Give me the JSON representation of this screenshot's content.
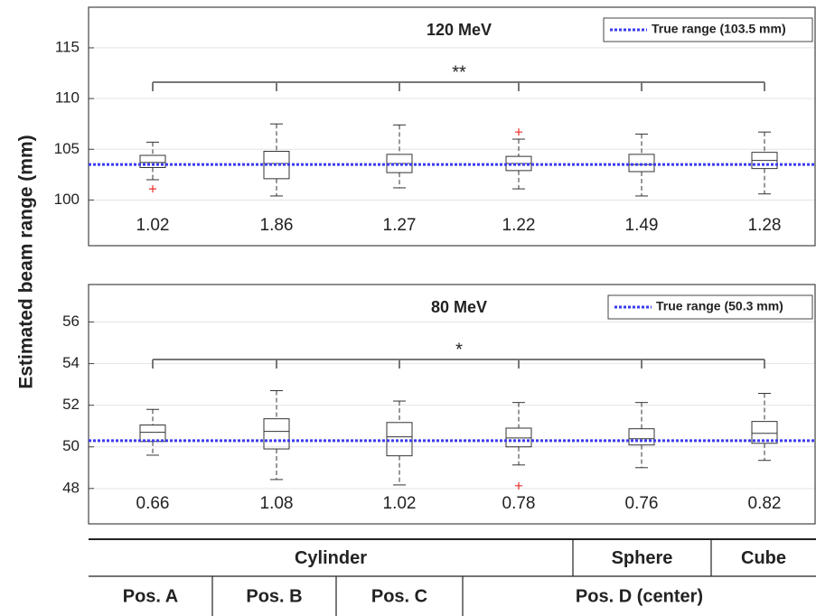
{
  "chart_data": [
    {
      "type": "box",
      "title": "120 MeV",
      "ylabel": "Estimated beam range (mm)",
      "ylim": [
        95.5,
        119
      ],
      "yticks": [
        100,
        105,
        110,
        115
      ],
      "grid": true,
      "boxes": [
        {
          "low": 102.0,
          "q1": 103.2,
          "median": 103.7,
          "q3": 104.4,
          "high": 105.7,
          "outliers": [
            101.1
          ]
        },
        {
          "low": 100.4,
          "q1": 102.1,
          "median": 103.6,
          "q3": 104.8,
          "high": 107.5,
          "outliers": []
        },
        {
          "low": 101.2,
          "q1": 102.7,
          "median": 103.6,
          "q3": 104.5,
          "high": 107.4,
          "outliers": []
        },
        {
          "low": 101.1,
          "q1": 102.9,
          "median": 103.6,
          "q3": 104.3,
          "high": 106.0,
          "outliers": [
            106.7
          ]
        },
        {
          "low": 100.4,
          "q1": 102.8,
          "median": 103.5,
          "q3": 104.5,
          "high": 106.5,
          "outliers": []
        },
        {
          "low": 100.6,
          "q1": 103.1,
          "median": 103.9,
          "q3": 104.7,
          "high": 106.7,
          "outliers": []
        }
      ],
      "box_labels": [
        1.02,
        1.86,
        1.27,
        1.22,
        1.49,
        1.28
      ],
      "reference": {
        "name": "True range (103.5 mm)",
        "value": 103.5,
        "color": "#3a3af0"
      },
      "significance": "**",
      "legend": "upper right",
      "outlier_color": "#e8302a"
    },
    {
      "type": "box",
      "title": "80 MeV",
      "ylim": [
        46.3,
        57.8
      ],
      "yticks": [
        48,
        50,
        52,
        54,
        56
      ],
      "grid": true,
      "boxes": [
        {
          "low": 49.6,
          "q1": 50.26,
          "median": 50.7,
          "q3": 51.05,
          "high": 51.8,
          "outliers": []
        },
        {
          "low": 48.43,
          "q1": 49.9,
          "median": 50.74,
          "q3": 51.35,
          "high": 52.7,
          "outliers": []
        },
        {
          "low": 48.17,
          "q1": 49.57,
          "median": 50.48,
          "q3": 51.17,
          "high": 52.2,
          "outliers": []
        },
        {
          "low": 49.13,
          "q1": 50.0,
          "median": 50.43,
          "q3": 50.9,
          "high": 52.13,
          "outliers": [
            48.13
          ]
        },
        {
          "low": 49.0,
          "q1": 50.09,
          "median": 50.39,
          "q3": 50.87,
          "high": 52.13,
          "outliers": []
        },
        {
          "low": 49.35,
          "q1": 50.17,
          "median": 50.65,
          "q3": 51.22,
          "high": 52.57,
          "outliers": []
        }
      ],
      "box_labels": [
        0.66,
        1.08,
        1.02,
        0.78,
        0.76,
        0.82
      ],
      "reference": {
        "name": "True range (50.3 mm)",
        "value": 50.3,
        "color": "#3a3af0"
      },
      "significance": "*",
      "legend": "upper right",
      "outlier_color": "#e8302a"
    }
  ],
  "table": {
    "rows": [
      [
        "Cylinder",
        "Sphere",
        "Cube"
      ],
      [
        "Pos. A",
        "Pos. B",
        "Pos. C",
        "Pos. D (center)"
      ]
    ]
  }
}
